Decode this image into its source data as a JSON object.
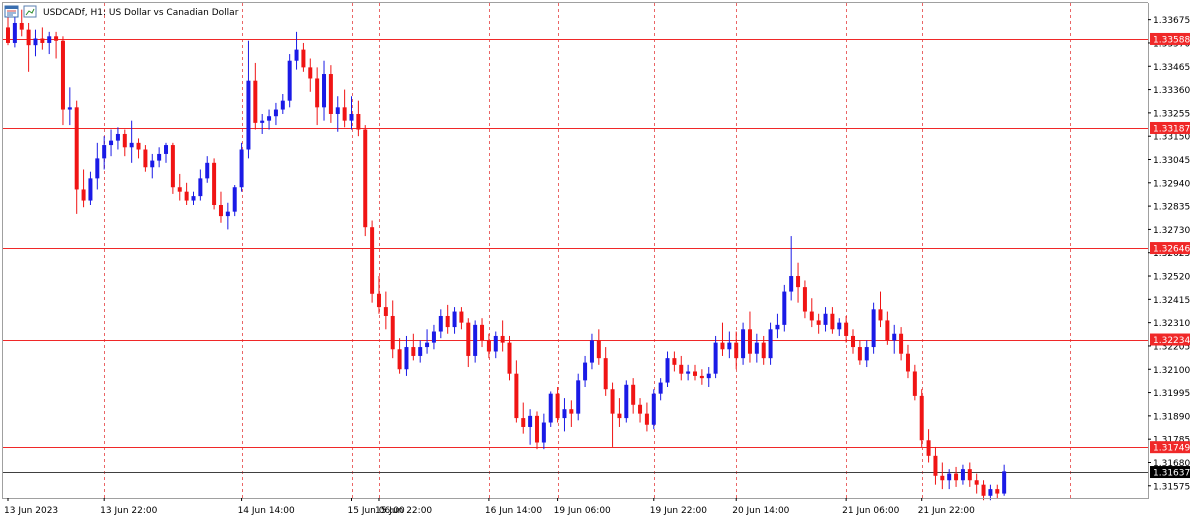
{
  "window": {
    "symbol_title": "USDCADf, H1:  US Dollar vs Canadian Dollar"
  },
  "icons": [
    "chart-window-icon",
    "chart-copy-icon"
  ],
  "colors": {
    "bull": "#1a1ae6",
    "bear": "#f01414",
    "level_line": "#f02828",
    "current_line": "#404040",
    "current_tag": "#000000",
    "session_grid": "#e02020",
    "axis": "#a0a0a0",
    "background": "#ffffff"
  },
  "chart_data": {
    "type": "candlestick",
    "title": "USDCADf, H1:  US Dollar vs Canadian Dollar",
    "timeframe": "H1",
    "ylim": [
      1.3152,
      1.3375
    ],
    "y_ticks": [
      "1.33675",
      "1.33570",
      "1.33465",
      "1.33360",
      "1.33255",
      "1.33150",
      "1.33045",
      "1.32940",
      "1.32835",
      "1.32730",
      "1.32625",
      "1.32520",
      "1.32415",
      "1.32310",
      "1.32205",
      "1.32100",
      "1.31995",
      "1.31890",
      "1.31785",
      "1.31680",
      "1.31575"
    ],
    "x_ticks": [
      "13 Jun 2023",
      "13 Jun 22:00",
      "14 Jun 14:00",
      "15 Jun 06:00",
      "15 Jun 22:00",
      "16 Jun 14:00",
      "19 Jun 06:00",
      "19 Jun 22:00",
      "20 Jun 14:00",
      "21 Jun 06:00",
      "21 Jun 22:00"
    ],
    "grid": true,
    "levels": [
      {
        "price": 1.33588,
        "label": "1.33588"
      },
      {
        "price": 1.33187,
        "label": "1.33187"
      },
      {
        "price": 1.32646,
        "label": "1.32646"
      },
      {
        "price": 1.32234,
        "label": "1.32234"
      },
      {
        "price": 1.31749,
        "label": "1.31749"
      }
    ],
    "current_price": {
      "price": 1.31637,
      "label": "1.31637"
    },
    "candles": [
      [
        1.3364,
        1.337,
        1.3356,
        1.3357
      ],
      [
        1.3357,
        1.337,
        1.3355,
        1.3366
      ],
      [
        1.3366,
        1.3372,
        1.336,
        1.3363
      ],
      [
        1.3363,
        1.3366,
        1.3344,
        1.3356
      ],
      [
        1.3356,
        1.3363,
        1.3351,
        1.3359
      ],
      [
        1.3359,
        1.3364,
        1.3354,
        1.3357
      ],
      [
        1.3357,
        1.3362,
        1.3352,
        1.336
      ],
      [
        1.336,
        1.3362,
        1.335,
        1.3358
      ],
      [
        1.3358,
        1.336,
        1.332,
        1.3327
      ],
      [
        1.3327,
        1.3337,
        1.332,
        1.3328
      ],
      [
        1.3328,
        1.3331,
        1.328,
        1.3291
      ],
      [
        1.3291,
        1.33,
        1.3283,
        1.3286
      ],
      [
        1.3286,
        1.3299,
        1.3284,
        1.3296
      ],
      [
        1.3296,
        1.3312,
        1.3291,
        1.3305
      ],
      [
        1.3305,
        1.3315,
        1.33,
        1.3311
      ],
      [
        1.3311,
        1.3318,
        1.3306,
        1.3313
      ],
      [
        1.3313,
        1.3319,
        1.3309,
        1.3316
      ],
      [
        1.3316,
        1.3318,
        1.3306,
        1.331
      ],
      [
        1.331,
        1.3322,
        1.3303,
        1.3312
      ],
      [
        1.3312,
        1.3314,
        1.3305,
        1.3309
      ],
      [
        1.3309,
        1.3311,
        1.3299,
        1.3301
      ],
      [
        1.3301,
        1.3307,
        1.3296,
        1.3304
      ],
      [
        1.3304,
        1.331,
        1.3301,
        1.3307
      ],
      [
        1.3307,
        1.3312,
        1.3303,
        1.3311
      ],
      [
        1.3311,
        1.3312,
        1.3289,
        1.3292
      ],
      [
        1.3292,
        1.3298,
        1.3286,
        1.329
      ],
      [
        1.329,
        1.3294,
        1.3284,
        1.3286
      ],
      [
        1.3286,
        1.329,
        1.3284,
        1.3288
      ],
      [
        1.3288,
        1.33,
        1.3286,
        1.3296
      ],
      [
        1.3296,
        1.3306,
        1.3294,
        1.3303
      ],
      [
        1.3303,
        1.3305,
        1.3282,
        1.3284
      ],
      [
        1.3284,
        1.329,
        1.3276,
        1.3279
      ],
      [
        1.3279,
        1.3285,
        1.3273,
        1.3281
      ],
      [
        1.3281,
        1.3293,
        1.3279,
        1.3292
      ],
      [
        1.3292,
        1.3312,
        1.329,
        1.3309
      ],
      [
        1.3309,
        1.3358,
        1.3305,
        1.334
      ],
      [
        1.334,
        1.3348,
        1.3318,
        1.3321
      ],
      [
        1.3321,
        1.3325,
        1.3316,
        1.3322
      ],
      [
        1.3322,
        1.3327,
        1.3318,
        1.3324
      ],
      [
        1.3324,
        1.333,
        1.332,
        1.3327
      ],
      [
        1.3327,
        1.3334,
        1.3325,
        1.3331
      ],
      [
        1.3331,
        1.3352,
        1.3328,
        1.3349
      ],
      [
        1.3349,
        1.3362,
        1.3345,
        1.3354
      ],
      [
        1.3354,
        1.3357,
        1.3344,
        1.3346
      ],
      [
        1.3346,
        1.335,
        1.3335,
        1.3341
      ],
      [
        1.3341,
        1.3346,
        1.332,
        1.3328
      ],
      [
        1.3328,
        1.3349,
        1.3322,
        1.3343
      ],
      [
        1.3343,
        1.3347,
        1.3321,
        1.3325
      ],
      [
        1.3325,
        1.3333,
        1.3317,
        1.3328
      ],
      [
        1.3328,
        1.3336,
        1.3319,
        1.3322
      ],
      [
        1.3322,
        1.3333,
        1.3318,
        1.3325
      ],
      [
        1.3325,
        1.3331,
        1.3315,
        1.3318
      ],
      [
        1.3318,
        1.332,
        1.327,
        1.3274
      ],
      [
        1.3274,
        1.3277,
        1.324,
        1.3244
      ],
      [
        1.3244,
        1.3252,
        1.3235,
        1.3238
      ],
      [
        1.3238,
        1.3245,
        1.3228,
        1.3234
      ],
      [
        1.3234,
        1.3241,
        1.3215,
        1.3219
      ],
      [
        1.3219,
        1.3224,
        1.3208,
        1.321
      ],
      [
        1.321,
        1.3225,
        1.3207,
        1.322
      ],
      [
        1.322,
        1.3226,
        1.3214,
        1.3216
      ],
      [
        1.3216,
        1.3223,
        1.3213,
        1.322
      ],
      [
        1.322,
        1.3228,
        1.3217,
        1.3222
      ],
      [
        1.3222,
        1.323,
        1.3219,
        1.3227
      ],
      [
        1.3227,
        1.3237,
        1.3224,
        1.3234
      ],
      [
        1.3234,
        1.3239,
        1.3226,
        1.3229
      ],
      [
        1.3229,
        1.3238,
        1.3226,
        1.3236
      ],
      [
        1.3236,
        1.3238,
        1.3228,
        1.3231
      ],
      [
        1.3231,
        1.3233,
        1.3211,
        1.3216
      ],
      [
        1.3216,
        1.3232,
        1.3213,
        1.323
      ],
      [
        1.323,
        1.3233,
        1.322,
        1.3223
      ],
      [
        1.3223,
        1.3226,
        1.3215,
        1.3218
      ],
      [
        1.3218,
        1.3227,
        1.3215,
        1.3225
      ],
      [
        1.3225,
        1.3232,
        1.3218,
        1.3222
      ],
      [
        1.3222,
        1.3225,
        1.3205,
        1.3208
      ],
      [
        1.3208,
        1.3214,
        1.3186,
        1.3188
      ],
      [
        1.3188,
        1.3195,
        1.3181,
        1.3184
      ],
      [
        1.3184,
        1.3192,
        1.3176,
        1.3189
      ],
      [
        1.3189,
        1.3191,
        1.3174,
        1.3177
      ],
      [
        1.3177,
        1.319,
        1.3174,
        1.3186
      ],
      [
        1.3186,
        1.32,
        1.3184,
        1.3199
      ],
      [
        1.3199,
        1.3202,
        1.3186,
        1.3188
      ],
      [
        1.3188,
        1.3197,
        1.3182,
        1.3192
      ],
      [
        1.3192,
        1.3196,
        1.3184,
        1.319
      ],
      [
        1.319,
        1.3208,
        1.3187,
        1.3205
      ],
      [
        1.3205,
        1.3216,
        1.3202,
        1.3213
      ],
      [
        1.3213,
        1.3226,
        1.321,
        1.3223
      ],
      [
        1.3223,
        1.3228,
        1.3212,
        1.3215
      ],
      [
        1.3215,
        1.322,
        1.3198,
        1.3201
      ],
      [
        1.3201,
        1.3204,
        1.3175,
        1.319
      ],
      [
        1.319,
        1.3197,
        1.3184,
        1.3188
      ],
      [
        1.3188,
        1.3205,
        1.3186,
        1.3203
      ],
      [
        1.3203,
        1.3206,
        1.319,
        1.3194
      ],
      [
        1.3194,
        1.3197,
        1.3186,
        1.319
      ],
      [
        1.319,
        1.3195,
        1.3182,
        1.3185
      ],
      [
        1.3185,
        1.3201,
        1.3183,
        1.3199
      ],
      [
        1.3199,
        1.3206,
        1.3196,
        1.3204
      ],
      [
        1.3204,
        1.3218,
        1.3202,
        1.3215
      ],
      [
        1.3215,
        1.3218,
        1.3209,
        1.3212
      ],
      [
        1.3212,
        1.3216,
        1.3205,
        1.3208
      ],
      [
        1.3208,
        1.3212,
        1.3205,
        1.3209
      ],
      [
        1.3209,
        1.3212,
        1.3205,
        1.3207
      ],
      [
        1.3207,
        1.321,
        1.3203,
        1.3206
      ],
      [
        1.3206,
        1.3211,
        1.3202,
        1.3208
      ],
      [
        1.3208,
        1.3225,
        1.3206,
        1.3222
      ],
      [
        1.3222,
        1.3231,
        1.3216,
        1.3219
      ],
      [
        1.3219,
        1.3227,
        1.3215,
        1.3222
      ],
      [
        1.3222,
        1.3227,
        1.321,
        1.3215
      ],
      [
        1.3215,
        1.3231,
        1.3212,
        1.3228
      ],
      [
        1.3228,
        1.3236,
        1.3213,
        1.3217
      ],
      [
        1.3217,
        1.3226,
        1.3213,
        1.3222
      ],
      [
        1.3222,
        1.3225,
        1.3212,
        1.3215
      ],
      [
        1.3215,
        1.3231,
        1.3212,
        1.3228
      ],
      [
        1.3228,
        1.3235,
        1.3224,
        1.323
      ],
      [
        1.323,
        1.3248,
        1.3227,
        1.3245
      ],
      [
        1.3245,
        1.327,
        1.3241,
        1.3252
      ],
      [
        1.3252,
        1.3258,
        1.324,
        1.3247
      ],
      [
        1.3247,
        1.325,
        1.3233,
        1.3236
      ],
      [
        1.3236,
        1.3242,
        1.3229,
        1.3232
      ],
      [
        1.3232,
        1.3235,
        1.3226,
        1.323
      ],
      [
        1.323,
        1.3238,
        1.3227,
        1.3235
      ],
      [
        1.3235,
        1.3238,
        1.3226,
        1.3228
      ],
      [
        1.3228,
        1.3233,
        1.3225,
        1.3231
      ],
      [
        1.3231,
        1.3234,
        1.3222,
        1.3225
      ],
      [
        1.3225,
        1.3228,
        1.3217,
        1.322
      ],
      [
        1.322,
        1.3223,
        1.3212,
        1.3214
      ],
      [
        1.3214,
        1.3223,
        1.3211,
        1.322
      ],
      [
        1.322,
        1.324,
        1.3217,
        1.3237
      ],
      [
        1.3237,
        1.3245,
        1.3229,
        1.3232
      ],
      [
        1.3232,
        1.3236,
        1.3221,
        1.3223
      ],
      [
        1.3223,
        1.323,
        1.3217,
        1.3226
      ],
      [
        1.3226,
        1.3229,
        1.3214,
        1.3217
      ],
      [
        1.3217,
        1.3221,
        1.3206,
        1.3209
      ],
      [
        1.3209,
        1.3212,
        1.3196,
        1.3198
      ],
      [
        1.3198,
        1.3201,
        1.3175,
        1.3178
      ],
      [
        1.3178,
        1.3183,
        1.3168,
        1.3171
      ],
      [
        1.3171,
        1.3175,
        1.3158,
        1.3162
      ],
      [
        1.3162,
        1.3168,
        1.3156,
        1.316
      ],
      [
        1.316,
        1.3165,
        1.3156,
        1.3163
      ],
      [
        1.3163,
        1.3166,
        1.3157,
        1.316
      ],
      [
        1.316,
        1.3167,
        1.3158,
        1.3165
      ],
      [
        1.3165,
        1.3168,
        1.3157,
        1.316
      ],
      [
        1.316,
        1.3163,
        1.3154,
        1.3158
      ],
      [
        1.3158,
        1.316,
        1.3151,
        1.3153
      ],
      [
        1.3153,
        1.3158,
        1.3151,
        1.3156
      ],
      [
        1.3156,
        1.3158,
        1.3152,
        1.3154
      ],
      [
        1.3154,
        1.3167,
        1.3153,
        1.3164
      ]
    ]
  }
}
